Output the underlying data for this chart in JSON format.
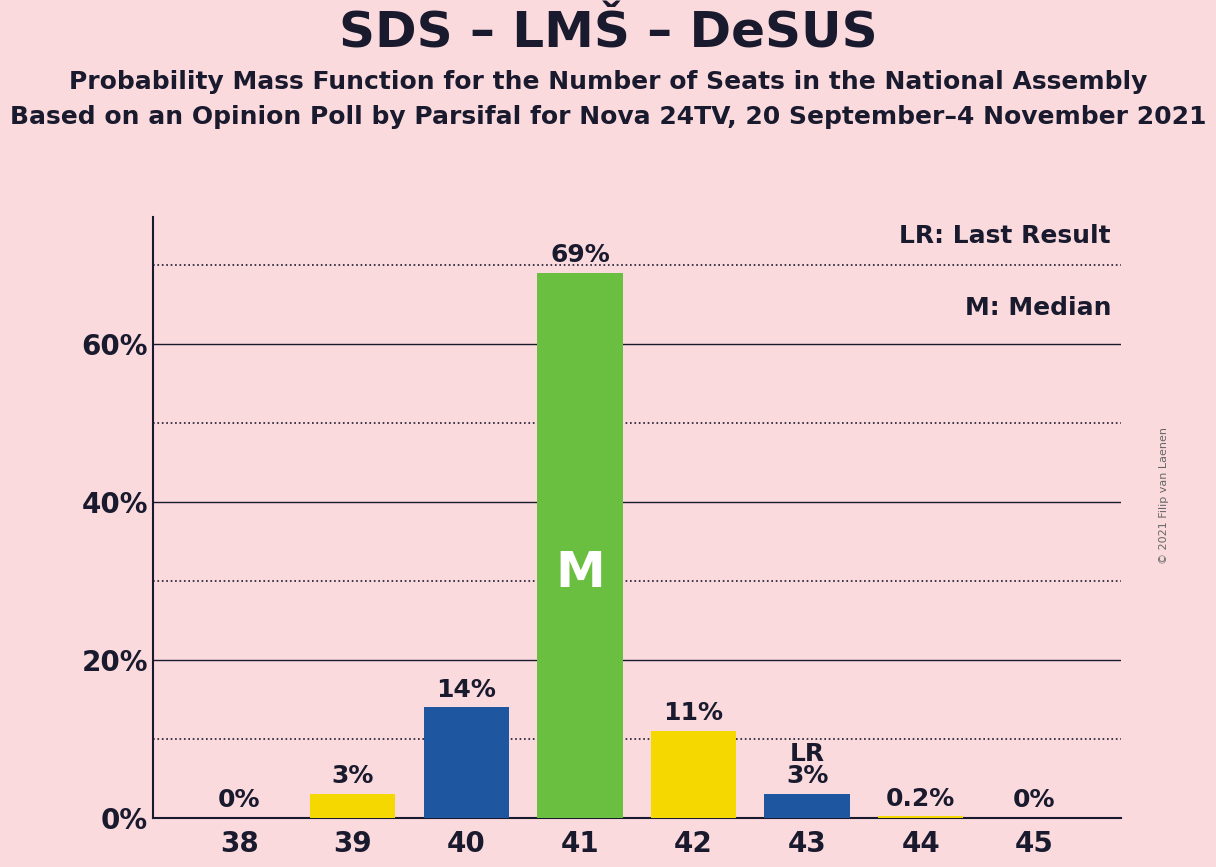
{
  "title": "SDS – LMŠ – DeSUS",
  "subtitle1": "Probability Mass Function for the Number of Seats in the National Assembly",
  "subtitle2": "Based on an Opinion Poll by Parsifal for Nova 24TV, 20 September–4 November 2021",
  "copyright": "© 2021 Filip van Laenen",
  "categories": [
    38,
    39,
    40,
    41,
    42,
    43,
    44,
    45
  ],
  "values": [
    0.0,
    0.03,
    0.14,
    0.69,
    0.11,
    0.03,
    0.002,
    0.0
  ],
  "bar_colors": [
    "#f5d800",
    "#f5d800",
    "#1e56a0",
    "#6abf40",
    "#f5d800",
    "#1e56a0",
    "#f5d800",
    "#f5d800"
  ],
  "labels": [
    "0%",
    "3%",
    "14%",
    "69%",
    "11%",
    "3%",
    "0.2%",
    "0%"
  ],
  "median_bar": 41,
  "last_result_bar": 43,
  "median_label": "M",
  "lr_label": "LR",
  "background_color": "#fadadd",
  "ylim": [
    0,
    0.76
  ],
  "solid_grid_yticks": [
    0.2,
    0.4,
    0.6
  ],
  "dotted_grid_yticks": [
    0.1,
    0.3,
    0.5,
    0.7
  ],
  "ytick_positions": [
    0.0,
    0.2,
    0.4,
    0.6
  ],
  "ytick_labels": [
    "0%",
    "20%",
    "40%",
    "60%"
  ],
  "legend_lr": "LR: Last Result",
  "legend_m": "M: Median",
  "title_fontsize": 36,
  "subtitle_fontsize": 18,
  "label_fontsize": 18,
  "tick_fontsize": 20,
  "legend_fontsize": 18,
  "median_fontsize": 36,
  "grid_color": "#1a1a2e",
  "text_color": "#1a1a2e"
}
